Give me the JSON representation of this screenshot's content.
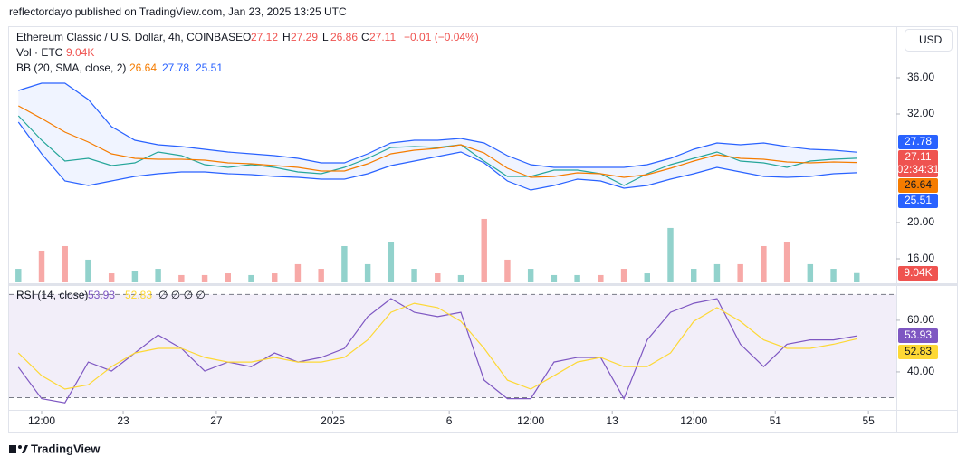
{
  "header": {
    "publisher": "reflectordayo published on TradingView.com, Jan 23, 2025 13:25 UTC",
    "symbol": "Ethereum Classic / U.S. Dollar, 4h, COINBASE",
    "ohlc": [
      {
        "label": "O",
        "value": 27.12
      },
      {
        "label": "H",
        "value": 27.29
      },
      {
        "label": "L",
        "value": 26.86
      },
      {
        "label": "C",
        "value": 27.11
      }
    ],
    "change": "−0.01 (−0.04%)",
    "volume_label": "Vol · ETC",
    "bb_label": "BB (20, SMA, close, 2)",
    "rsi_label": "RSI (14, close)",
    "rsi_extra": "∅ ∅ ∅ ∅",
    "currency": "USD",
    "countdown": "02:34:31",
    "footer": "TradingView"
  },
  "chart_data": [
    {
      "type": "line",
      "x": [
        18.5,
        19.5,
        20.5,
        21.5,
        22.5,
        23.5,
        24.5,
        25.5,
        26.5,
        27.5,
        28.5,
        29.5,
        30.5,
        31.5,
        32.5,
        33.5,
        34.5,
        35.5,
        36.5,
        37.5,
        38.5,
        39.5,
        40.5,
        41.5,
        42.5,
        43.5,
        44.5,
        45.5,
        46.5,
        47.5,
        48.5,
        49.5,
        50.5,
        51.5,
        52.5,
        53.5,
        54.5
      ],
      "xlim": [
        18.1,
        56.2
      ],
      "ylim": [
        13.4,
        41.6
      ],
      "yticks": [
        {
          "value": 36,
          "label": "36.00"
        },
        {
          "value": 32,
          "label": "32.00"
        },
        {
          "value": 20,
          "label": "20.00"
        },
        {
          "value": 16,
          "label": "16.00"
        }
      ],
      "band_color": "#2962ff",
      "series": [
        {
          "color": "#26a69a",
          "values": [
            31.8,
            29.1,
            26.8,
            27.1,
            26.3,
            26.6,
            27.8,
            27.4,
            26.4,
            26.1,
            26.4,
            26.1,
            25.6,
            25.4,
            26.1,
            27.1,
            28.3,
            28.4,
            28.3,
            28.6,
            26.8,
            25.1,
            25.1,
            25.8,
            25.8,
            25.4,
            24.1,
            25.4,
            26.4,
            27.1,
            27.8,
            26.8,
            26.6,
            26.1,
            26.8,
            27.0,
            27.11
          ]
        },
        {
          "color": "#f57c00",
          "values": [
            32.9,
            31.5,
            30.0,
            28.9,
            27.6,
            27.1,
            27.0,
            27.0,
            26.9,
            26.6,
            26.5,
            26.3,
            26.1,
            25.7,
            25.7,
            26.5,
            27.6,
            28.0,
            28.2,
            28.6,
            27.7,
            26.0,
            25.0,
            25.1,
            25.5,
            25.4,
            25.0,
            25.3,
            26.0,
            26.8,
            27.5,
            27.1,
            27.0,
            26.7,
            26.6,
            26.7,
            26.64
          ]
        },
        {
          "color": "#2962ff",
          "values": [
            34.6,
            35.4,
            35.4,
            33.6,
            30.6,
            29.1,
            28.6,
            28.4,
            28.1,
            27.8,
            27.6,
            27.4,
            27.1,
            26.6,
            26.6,
            27.6,
            28.8,
            29.1,
            29.1,
            29.3,
            28.8,
            27.4,
            26.4,
            26.1,
            26.1,
            26.1,
            26.1,
            26.4,
            27.1,
            28.1,
            28.8,
            28.6,
            28.8,
            28.4,
            28.1,
            28.0,
            27.78
          ]
        },
        {
          "color": "#2962ff",
          "values": [
            31.1,
            27.6,
            24.6,
            24.1,
            24.6,
            25.1,
            25.4,
            25.6,
            25.6,
            25.4,
            25.3,
            25.1,
            25.0,
            24.8,
            24.8,
            25.4,
            26.3,
            26.8,
            27.3,
            27.8,
            26.6,
            24.6,
            23.6,
            24.1,
            24.8,
            24.6,
            23.8,
            24.1,
            24.8,
            25.4,
            26.1,
            25.6,
            25.1,
            25.0,
            25.1,
            25.4,
            25.51
          ]
        }
      ]
    },
    {
      "type": "bar",
      "x": [
        18.5,
        19.5,
        20.5,
        21.5,
        22.5,
        23.5,
        24.5,
        25.5,
        26.5,
        27.5,
        28.5,
        29.5,
        30.5,
        31.5,
        32.5,
        33.5,
        34.5,
        35.5,
        36.5,
        37.5,
        38.5,
        39.5,
        40.5,
        41.5,
        42.5,
        43.5,
        44.5,
        45.5,
        46.5,
        47.5,
        48.5,
        49.5,
        50.5,
        51.5,
        52.5,
        53.5,
        54.5
      ],
      "xlim": [
        18.1,
        56.2
      ],
      "ylim": [
        0,
        90
      ],
      "up_color": "#26a69a",
      "down_color": "#ef5350",
      "values": [
        13.2,
        30.9,
        35.3,
        22.1,
        8.8,
        10.6,
        13.2,
        7.1,
        7.1,
        8.8,
        7.1,
        8.8,
        17.7,
        13.2,
        35.3,
        17.7,
        39.7,
        13.2,
        8.8,
        7.1,
        61.8,
        22.1,
        13.2,
        7.1,
        7.1,
        7.1,
        13.2,
        8.8,
        53.0,
        13.2,
        17.7,
        17.7,
        35.3,
        39.7,
        17.7,
        13.2,
        9.04
      ],
      "value_labels": [
        null,
        null,
        null,
        null,
        null,
        null,
        null,
        null,
        null,
        null,
        null,
        null,
        null,
        null,
        null,
        null,
        null,
        null,
        null,
        null,
        null,
        null,
        null,
        null,
        null,
        null,
        null,
        null,
        null,
        null,
        null,
        null,
        null,
        null,
        null,
        null,
        "9.04K"
      ]
    },
    {
      "type": "line",
      "x": [
        18.5,
        19.5,
        20.5,
        21.5,
        22.5,
        23.5,
        24.5,
        25.5,
        26.5,
        27.5,
        28.5,
        29.5,
        30.5,
        31.5,
        32.5,
        33.5,
        34.5,
        35.5,
        36.5,
        37.5,
        38.5,
        39.5,
        40.5,
        41.5,
        42.5,
        43.5,
        44.5,
        45.5,
        46.5,
        47.5,
        48.5,
        49.5,
        50.5,
        51.5,
        52.5,
        53.5,
        54.5
      ],
      "xlim": [
        18.1,
        56.2
      ],
      "ylim": [
        26.3,
        73.3
      ],
      "yticks": [
        {
          "value": 60,
          "label": "60.00"
        },
        {
          "value": 40,
          "label": "40.00"
        }
      ],
      "levels": [
        70,
        30
      ],
      "xticks": [
        {
          "value": 19.5,
          "label": "12:00"
        },
        23,
        27,
        {
          "value": 32,
          "label": "2025"
        },
        {
          "value": 37,
          "label": "6"
        },
        {
          "value": 40.5,
          "label": "12:00"
        },
        {
          "value": 44,
          "label": "13"
        },
        {
          "value": 47.5,
          "label": "12:00"
        },
        51,
        55
      ],
      "series": [
        {
          "color": "#7e57c2",
          "values": [
            41.8,
            29.6,
            28,
            43.8,
            40.3,
            47.3,
            54.3,
            49.1,
            40.3,
            43.8,
            42,
            47.3,
            43.8,
            45.6,
            49.1,
            61.4,
            68.4,
            63.1,
            61.4,
            63.1,
            36.8,
            29.6,
            29.6,
            43.8,
            45.6,
            45.6,
            29.6,
            52.4,
            63.1,
            66.6,
            68.4,
            50.7,
            42,
            50.7,
            52.4,
            52.4,
            53.93
          ]
        },
        {
          "color": "#fdd835",
          "values": [
            47.3,
            38.5,
            33.3,
            35,
            42,
            47.3,
            49.1,
            49.1,
            45.6,
            43.8,
            43.8,
            45.6,
            43.8,
            43.8,
            45.6,
            52.4,
            63.1,
            66.6,
            64.9,
            59.6,
            49.1,
            36.8,
            33.3,
            38.5,
            43.8,
            45.6,
            42,
            42,
            47.3,
            59.6,
            64.9,
            59.6,
            52.4,
            49.1,
            49.1,
            50.7,
            52.83
          ]
        }
      ]
    }
  ]
}
